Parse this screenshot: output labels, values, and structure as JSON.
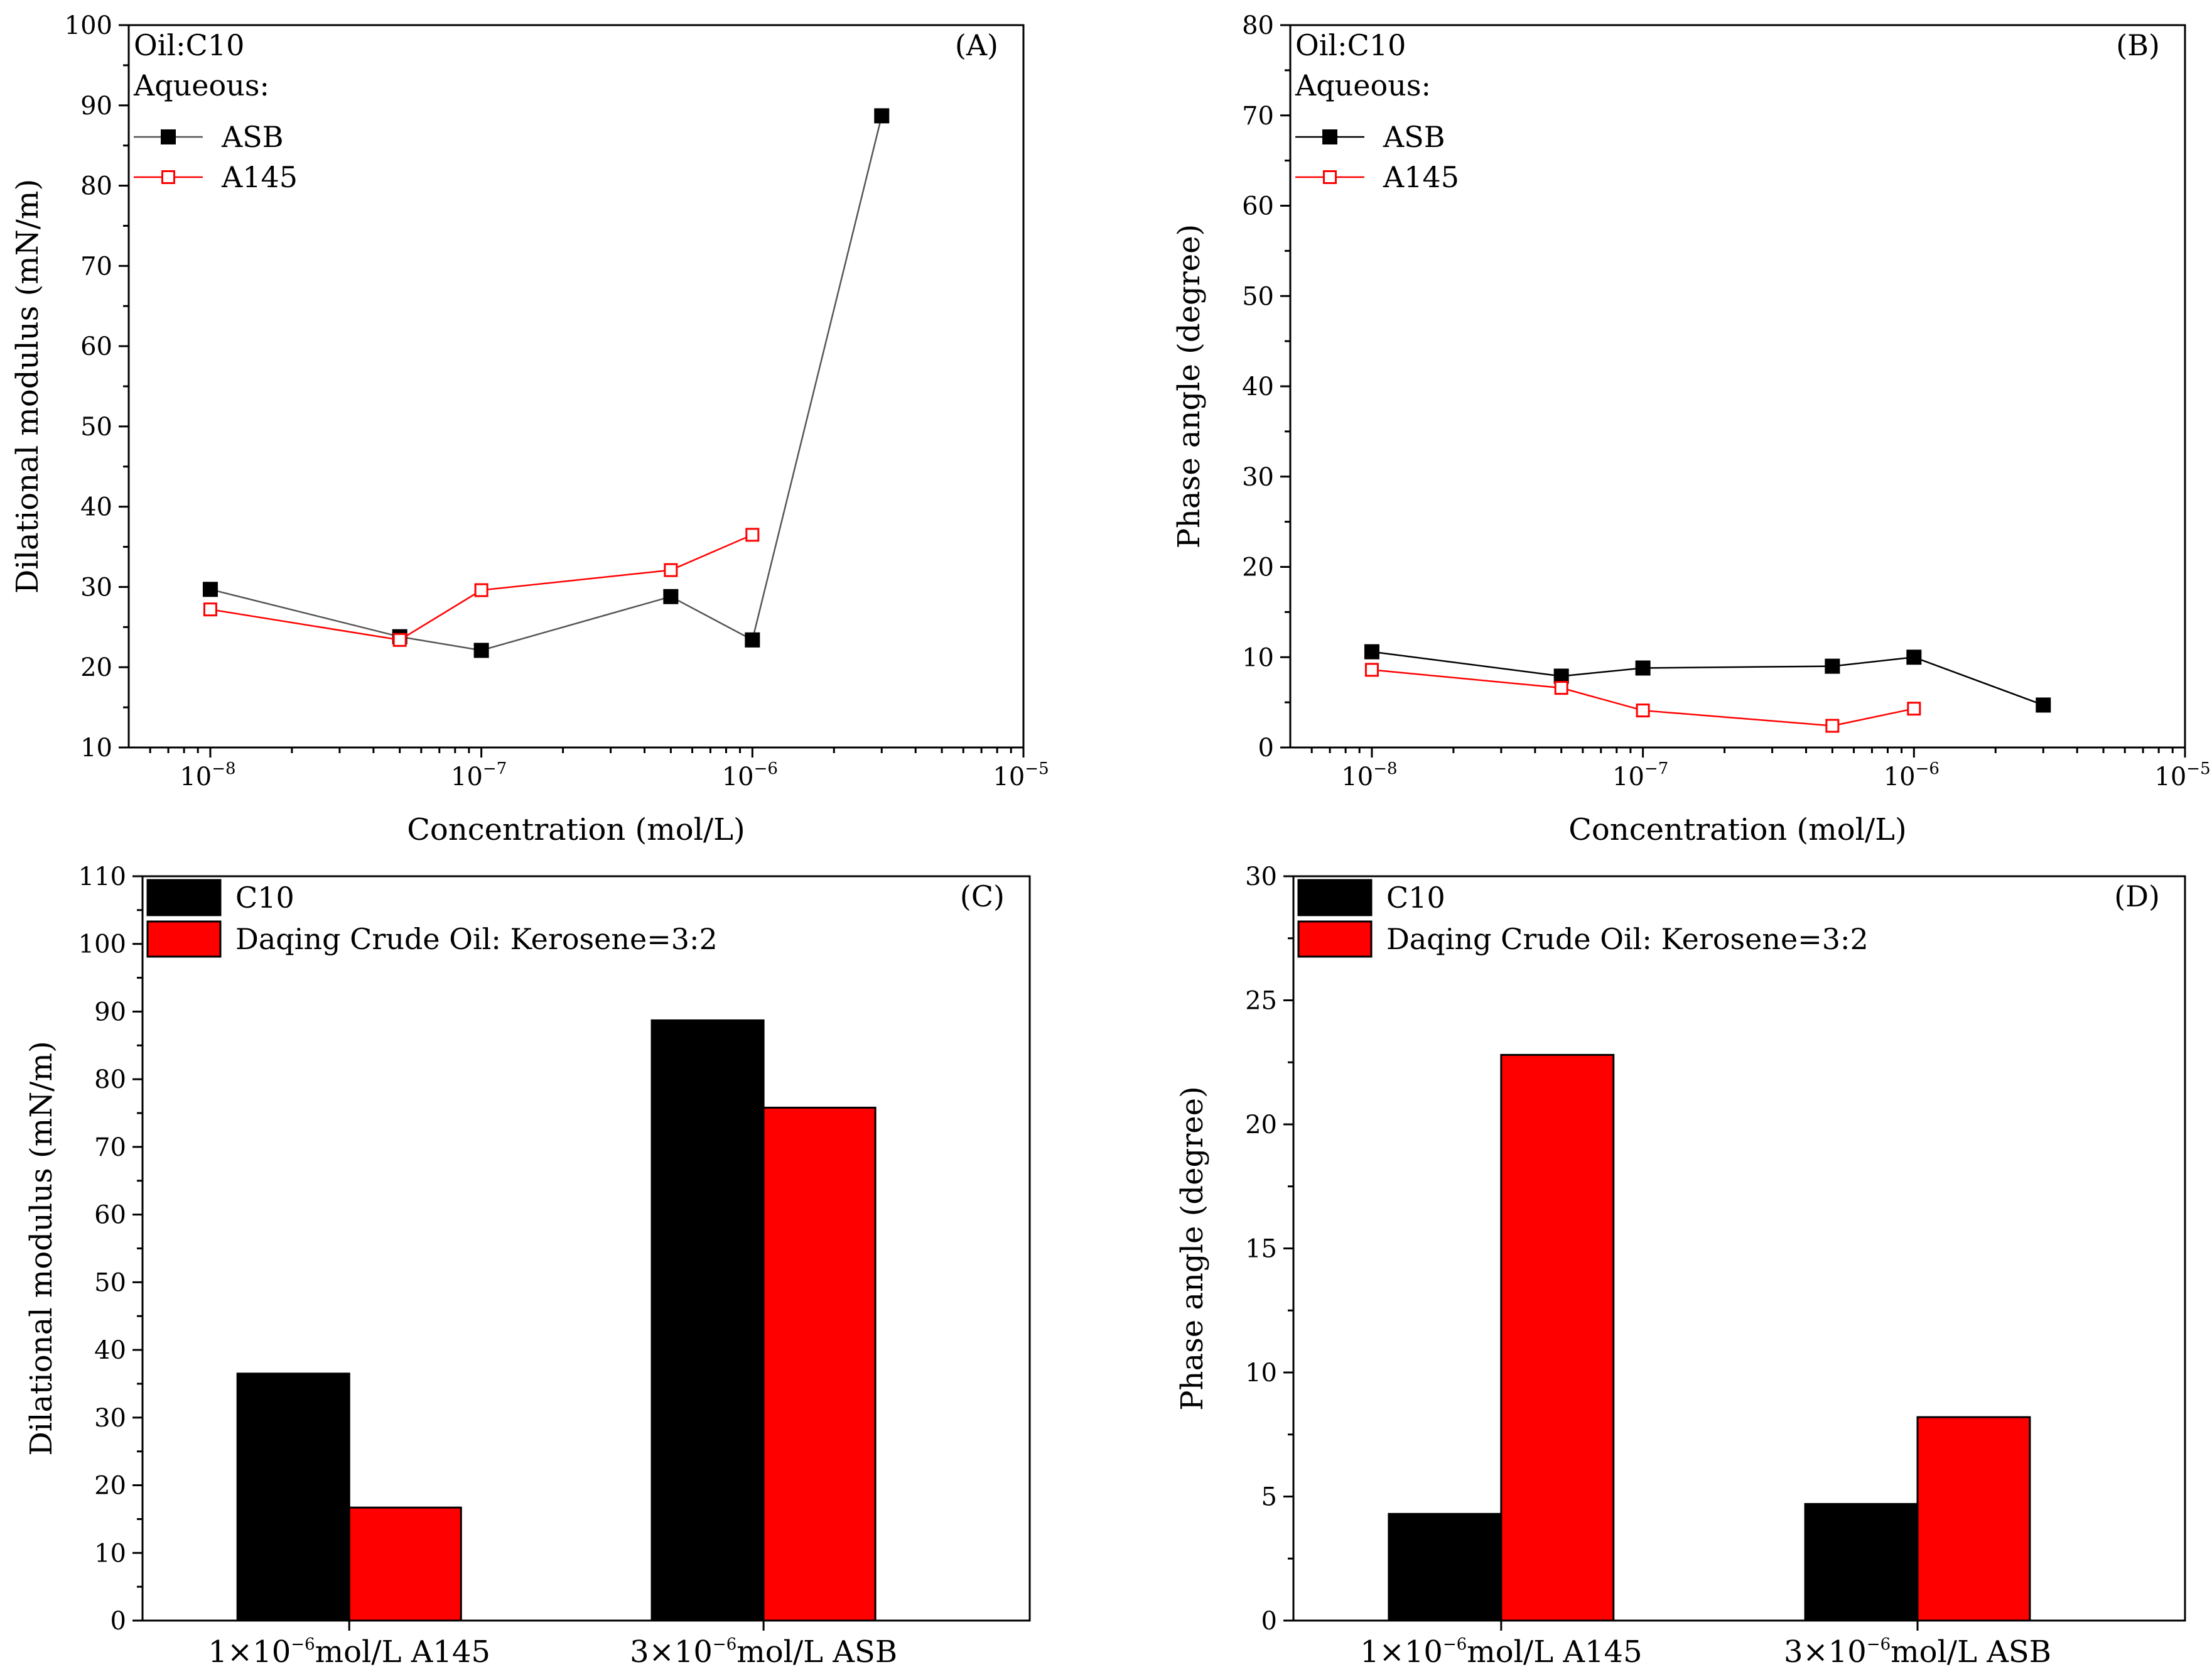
{
  "chart_data": [
    {
      "id": "A",
      "type": "line",
      "panel_label": "(A)",
      "annotations": [
        "Oil:C10",
        "Aqueous:"
      ],
      "xlabel": "Concentration (mol/L)",
      "ylabel": "Dilational modulus (mN/m)",
      "x_scale": "log",
      "xlim": [
        5e-09,
        1e-05
      ],
      "x_ticks": [
        {
          "base": "10",
          "exp": "−8",
          "value": 1e-08
        },
        {
          "base": "10",
          "exp": "−7",
          "value": 1e-07
        },
        {
          "base": "10",
          "exp": "−6",
          "value": 1e-06
        },
        {
          "base": "10",
          "exp": "−5",
          "value": 1e-05
        }
      ],
      "ylim": [
        10,
        100
      ],
      "y_ticks": [
        "10",
        "20",
        "30",
        "40",
        "50",
        "60",
        "70",
        "80",
        "90",
        "100"
      ],
      "legend": "top-left",
      "series": [
        {
          "name": "ASB",
          "marker": "filled-square",
          "color": "#000000",
          "line_color": "#555555",
          "x": [
            1e-08,
            5e-08,
            1e-07,
            5e-07,
            1e-06,
            3e-06
          ],
          "y": [
            29.7,
            23.8,
            22.1,
            28.8,
            23.4,
            88.7
          ]
        },
        {
          "name": "A145",
          "marker": "open-square",
          "color": "#ff0000",
          "line_color": "#ff0000",
          "x": [
            1e-08,
            5e-08,
            1e-07,
            5e-07,
            1e-06
          ],
          "y": [
            27.2,
            23.4,
            29.6,
            32.1,
            36.5
          ]
        }
      ]
    },
    {
      "id": "B",
      "type": "line",
      "panel_label": "(B)",
      "annotations": [
        "Oil:C10",
        "Aqueous:"
      ],
      "xlabel": "Concentration (mol/L)",
      "ylabel": "Phase angle (degree)",
      "x_scale": "log",
      "xlim": [
        5e-09,
        1e-05
      ],
      "x_ticks": [
        {
          "base": "10",
          "exp": "−8",
          "value": 1e-08
        },
        {
          "base": "10",
          "exp": "−7",
          "value": 1e-07
        },
        {
          "base": "10",
          "exp": "−6",
          "value": 1e-06
        },
        {
          "base": "10",
          "exp": "−5",
          "value": 1e-05
        }
      ],
      "ylim": [
        0,
        80
      ],
      "y_ticks": [
        "0",
        "10",
        "20",
        "30",
        "40",
        "50",
        "60",
        "70",
        "80"
      ],
      "legend": "top-left",
      "series": [
        {
          "name": "ASB",
          "marker": "filled-square",
          "color": "#000000",
          "line_color": "#000000",
          "x": [
            1e-08,
            5e-08,
            1e-07,
            5e-07,
            1e-06,
            3e-06
          ],
          "y": [
            10.6,
            7.9,
            8.8,
            9.0,
            10.0,
            4.7
          ]
        },
        {
          "name": "A145",
          "marker": "open-square",
          "color": "#ff0000",
          "line_color": "#ff0000",
          "x": [
            1e-08,
            5e-08,
            1e-07,
            5e-07,
            1e-06
          ],
          "y": [
            8.6,
            6.6,
            4.1,
            2.4,
            4.3
          ]
        }
      ]
    },
    {
      "id": "C",
      "type": "bar",
      "panel_label": "(C)",
      "ylabel": "Dilational modulus (mN/m)",
      "ylim": [
        0,
        110
      ],
      "y_ticks": [
        "0",
        "10",
        "20",
        "30",
        "40",
        "50",
        "60",
        "70",
        "80",
        "90",
        "100",
        "110"
      ],
      "categories": [
        {
          "pre": "1×10",
          "exp": "−6",
          "post": "mol/L A145"
        },
        {
          "pre": "3×10",
          "exp": "−6",
          "post": "mol/L ASB"
        }
      ],
      "legend": "top-left",
      "series": [
        {
          "name": "C10",
          "color": "#000000",
          "values": [
            36.5,
            88.7
          ]
        },
        {
          "name": "Daqing Crude Oil: Kerosene=3:2",
          "color": "#ff0000",
          "values": [
            16.7,
            75.8
          ]
        }
      ]
    },
    {
      "id": "D",
      "type": "bar",
      "panel_label": "(D)",
      "ylabel": "Phase angle (degree)",
      "ylim": [
        0,
        30
      ],
      "y_ticks": [
        "0",
        "5",
        "10",
        "15",
        "20",
        "25",
        "30"
      ],
      "categories": [
        {
          "pre": "1×10",
          "exp": "−6",
          "post": "mol/L A145"
        },
        {
          "pre": "3×10",
          "exp": "−6",
          "post": "mol/L ASB"
        }
      ],
      "legend": "top-left",
      "series": [
        {
          "name": "C10",
          "color": "#000000",
          "values": [
            4.3,
            4.7
          ]
        },
        {
          "name": "Daqing Crude Oil: Kerosene=3:2",
          "color": "#ff0000",
          "values": [
            22.8,
            8.2
          ]
        }
      ]
    }
  ]
}
